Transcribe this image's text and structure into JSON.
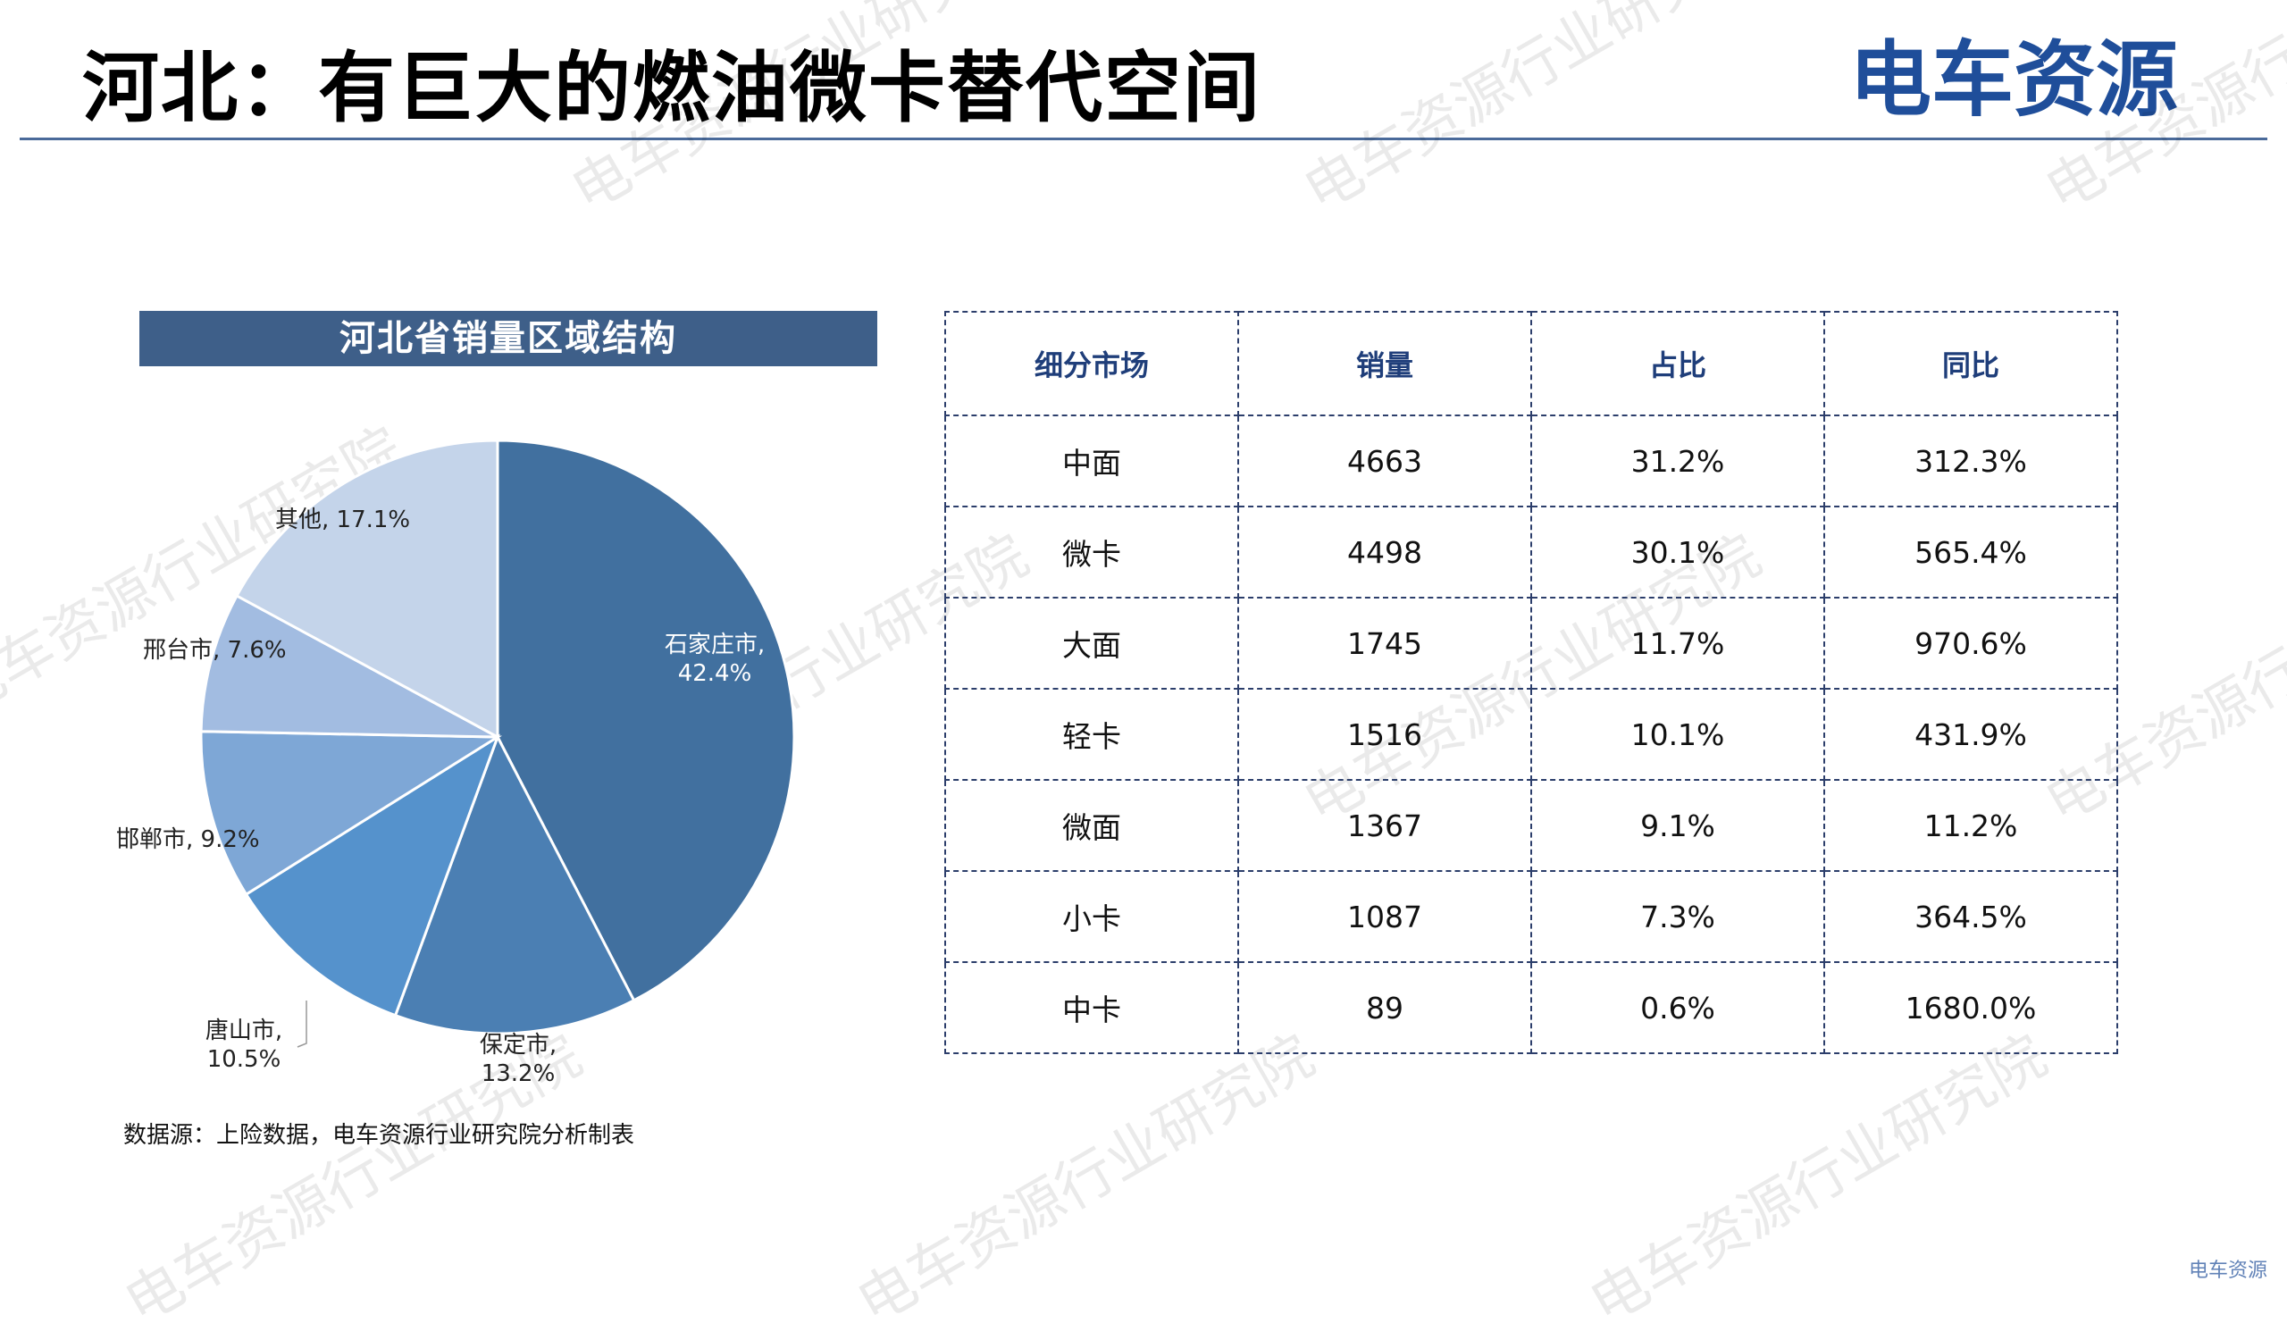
{
  "page": {
    "title": "河北：有巨大的燃油微卡替代空间",
    "logo_text_a": "电车资源",
    "watermark_text": "电车资源行业研究院",
    "source": "数据源：上险数据，电车资源行业研究院分析制表",
    "corner_mark": "电车资源"
  },
  "colors": {
    "title_bar": "#3e5f89",
    "rule": "#4a6a9a",
    "logo": "#1f4e9a",
    "logo_accent": "#3aa14a",
    "table_header_text": "#1f3e7a",
    "table_border": "#2c3e6b"
  },
  "chart_data": {
    "type": "pie",
    "title": "河北省销量区域结构",
    "slices": [
      {
        "label": "石家庄市",
        "percent_text": "42.4%",
        "value": 42.4,
        "color": "#41709f"
      },
      {
        "label": "保定市",
        "percent_text": "13.2%",
        "value": 13.2,
        "color": "#4b7fb3"
      },
      {
        "label": "唐山市",
        "percent_text": "10.5%",
        "value": 10.5,
        "color": "#5592cc"
      },
      {
        "label": "邯郸市",
        "percent_text": "9.2%",
        "value": 9.2,
        "color": "#7ea7d6"
      },
      {
        "label": "邢台市",
        "percent_text": "7.6%",
        "value": 7.6,
        "color": "#a2bce1"
      },
      {
        "label": "其他",
        "percent_text": "17.1%",
        "value": 17.1,
        "color": "#c4d4ea"
      }
    ]
  },
  "table": {
    "headers": [
      "细分市场",
      "销量",
      "占比",
      "同比"
    ],
    "rows": [
      [
        "中面",
        "4663",
        "31.2%",
        "312.3%"
      ],
      [
        "微卡",
        "4498",
        "30.1%",
        "565.4%"
      ],
      [
        "大面",
        "1745",
        "11.7%",
        "970.6%"
      ],
      [
        "轻卡",
        "1516",
        "10.1%",
        "431.9%"
      ],
      [
        "微面",
        "1367",
        "9.1%",
        "11.2%"
      ],
      [
        "小卡",
        "1087",
        "7.3%",
        "364.5%"
      ],
      [
        "中卡",
        "89",
        "0.6%",
        "1680.0%"
      ]
    ]
  }
}
